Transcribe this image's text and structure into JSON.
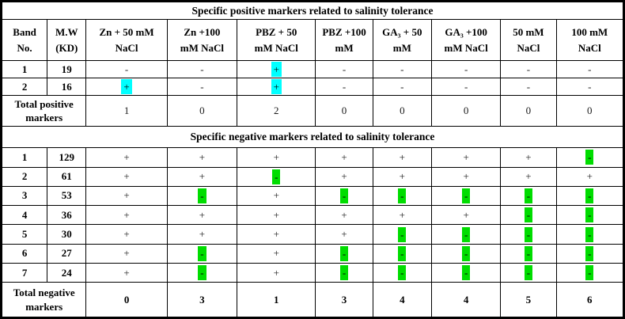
{
  "columns": [
    "Band\nNo.",
    "M.W\n(KD)",
    "Zn + 50 mM\nNaCl",
    "Zn +100\nmM NaCl",
    "PBZ + 50\nmM NaCl",
    "PBZ +100\nmM",
    "GA₃ + 50\nmM",
    "GA₃ +100\nmM NaCl",
    "50 mM\nNaCl",
    "100 mM\nNaCl"
  ],
  "positive": {
    "section_title": "Specific positive markers related to salinity tolerance",
    "rows": [
      {
        "band": "1",
        "mw": "19",
        "cells": [
          {
            "v": "-"
          },
          {
            "v": "-"
          },
          {
            "v": "+",
            "hl": "cyan"
          },
          {
            "v": "-"
          },
          {
            "v": "-"
          },
          {
            "v": "-"
          },
          {
            "v": "-"
          },
          {
            "v": "-"
          }
        ]
      },
      {
        "band": "2",
        "mw": "16",
        "cells": [
          {
            "v": "+",
            "hl": "cyan"
          },
          {
            "v": "-"
          },
          {
            "v": "+",
            "hl": "cyan"
          },
          {
            "v": "-"
          },
          {
            "v": "-"
          },
          {
            "v": "-"
          },
          {
            "v": "-"
          },
          {
            "v": "-"
          }
        ]
      }
    ],
    "total_label": "Total positive\nmarkers",
    "totals": [
      "1",
      "0",
      "2",
      "0",
      "0",
      "0",
      "0",
      "0"
    ]
  },
  "negative": {
    "section_title": "Specific negative markers related to salinity tolerance",
    "rows": [
      {
        "band": "1",
        "mw": "129",
        "cells": [
          {
            "v": "+"
          },
          {
            "v": "+"
          },
          {
            "v": "+"
          },
          {
            "v": "+"
          },
          {
            "v": "+"
          },
          {
            "v": "+"
          },
          {
            "v": "+"
          },
          {
            "v": "-",
            "hl": "green"
          }
        ]
      },
      {
        "band": "2",
        "mw": "61",
        "cells": [
          {
            "v": "+"
          },
          {
            "v": "+"
          },
          {
            "v": "-",
            "hl": "green"
          },
          {
            "v": "+"
          },
          {
            "v": "+"
          },
          {
            "v": "+"
          },
          {
            "v": "+"
          },
          {
            "v": "+"
          }
        ]
      },
      {
        "band": "3",
        "mw": "53",
        "cells": [
          {
            "v": "+"
          },
          {
            "v": "-",
            "hl": "green"
          },
          {
            "v": "+"
          },
          {
            "v": "-",
            "hl": "green"
          },
          {
            "v": "-",
            "hl": "green"
          },
          {
            "v": "-",
            "hl": "green"
          },
          {
            "v": "-",
            "hl": "green"
          },
          {
            "v": "-",
            "hl": "green"
          }
        ]
      },
      {
        "band": "4",
        "mw": "36",
        "cells": [
          {
            "v": "+"
          },
          {
            "v": "+"
          },
          {
            "v": "+"
          },
          {
            "v": "+"
          },
          {
            "v": "+"
          },
          {
            "v": "+"
          },
          {
            "v": "-",
            "hl": "green"
          },
          {
            "v": "-",
            "hl": "green"
          }
        ]
      },
      {
        "band": "5",
        "mw": "30",
        "cells": [
          {
            "v": "+"
          },
          {
            "v": "+"
          },
          {
            "v": "+"
          },
          {
            "v": "+"
          },
          {
            "v": "-",
            "hl": "green"
          },
          {
            "v": "-",
            "hl": "green"
          },
          {
            "v": "-",
            "hl": "green"
          },
          {
            "v": "-",
            "hl": "green"
          }
        ]
      },
      {
        "band": "6",
        "mw": "27",
        "cells": [
          {
            "v": "+"
          },
          {
            "v": "-",
            "hl": "green"
          },
          {
            "v": "+"
          },
          {
            "v": "-",
            "hl": "green"
          },
          {
            "v": "-",
            "hl": "green"
          },
          {
            "v": "-",
            "hl": "green"
          },
          {
            "v": "-",
            "hl": "green"
          },
          {
            "v": "-",
            "hl": "green"
          }
        ]
      },
      {
        "band": "7",
        "mw": "24",
        "cells": [
          {
            "v": "+"
          },
          {
            "v": "-",
            "hl": "green"
          },
          {
            "v": "+"
          },
          {
            "v": "-",
            "hl": "green"
          },
          {
            "v": "-",
            "hl": "green"
          },
          {
            "v": "-",
            "hl": "green"
          },
          {
            "v": "-",
            "hl": "green"
          },
          {
            "v": "-",
            "hl": "green"
          }
        ]
      }
    ],
    "total_label": "Total negative\nmarkers",
    "totals": [
      "0",
      "3",
      "1",
      "3",
      "4",
      "4",
      "5",
      "6"
    ]
  },
  "colors": {
    "positive_marker_highlight": "#00ffff",
    "negative_marker_highlight": "#00dd00"
  }
}
